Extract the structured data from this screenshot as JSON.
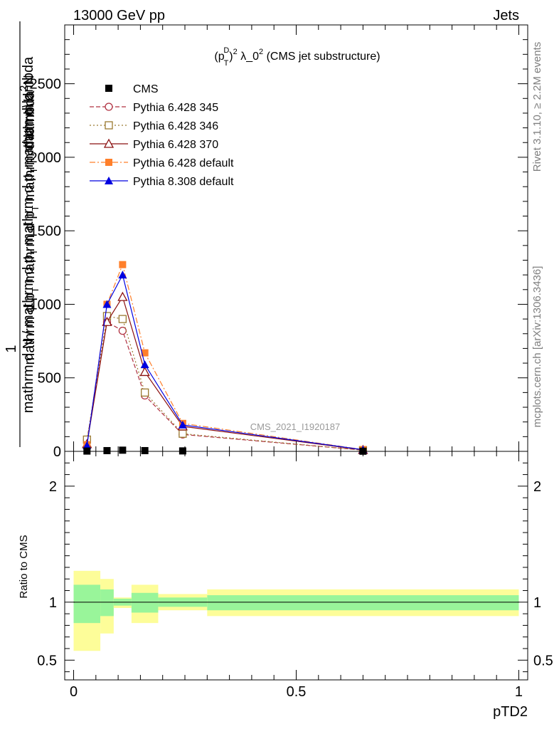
{
  "header": {
    "left": "13000 GeV pp",
    "right": "Jets"
  },
  "side_labels": {
    "rivet": "Rivet 3.1.10, ≥ 2.2M events",
    "mcplots": "mcplots.cern.ch [arXiv:1306.3436]"
  },
  "watermark": "CMS_2021_I1920187",
  "chart_data": [
    {
      "type": "line",
      "title_parts": {
        "pre": "(p",
        "sub": "T",
        "sup1": "D",
        "post1": ")",
        "sup2": "2",
        "post2": " λ_0",
        "sup3": "2",
        "post3": " (CMS jet substructure)"
      },
      "ylabel_numerator": "1",
      "ylabel_denominator": "mathrm d N / mathrm d p_T mathrm d p_T mathrm d\\lambda",
      "ylabel_parts": {
        "num": "mathrm d",
        "num2": "N",
        "den_a": "mathrm d N / mathrm d p",
        "den_sub": "T",
        "den_b": " mathrm d p",
        "den_sub2": "T",
        "den_c": "mathrm d\\lambda"
      },
      "xlim": [
        -0.02,
        1.02
      ],
      "ylim": [
        0,
        2900
      ],
      "yticks": [
        0,
        500,
        1000,
        1500,
        2000,
        2500
      ],
      "ytick_labels": [
        "0",
        "500",
        "1000",
        "1500",
        "2000",
        "2500"
      ],
      "x": [
        0.03,
        0.075,
        0.11,
        0.16,
        0.245,
        0.65
      ],
      "series": [
        {
          "name": "CMS",
          "values": [
            2,
            5,
            8,
            5,
            3,
            1
          ],
          "color": "#000000",
          "marker": "square-filled",
          "dash": "none"
        },
        {
          "name": "Pythia 6.428 345",
          "values": [
            75,
            880,
            820,
            380,
            115,
            8
          ],
          "color": "#b03040",
          "marker": "circle-open",
          "dash": "6,3"
        },
        {
          "name": "Pythia 6.428 346",
          "values": [
            80,
            920,
            900,
            400,
            120,
            8
          ],
          "color": "#9a7a30",
          "marker": "square-open",
          "dash": "2,3"
        },
        {
          "name": "Pythia 6.428 370",
          "values": [
            50,
            880,
            1050,
            540,
            170,
            10
          ],
          "color": "#8b1010",
          "marker": "triangle-open",
          "dash": "none"
        },
        {
          "name": "Pythia 6.428 default",
          "values": [
            45,
            1000,
            1270,
            670,
            190,
            12
          ],
          "color": "#ff7f2a",
          "marker": "square-filled",
          "dash": "8,3,2,3"
        },
        {
          "name": "Pythia 8.308 default",
          "values": [
            40,
            1000,
            1200,
            590,
            180,
            11
          ],
          "color": "#0000e0",
          "marker": "triangle-filled",
          "dash": "none"
        }
      ]
    },
    {
      "type": "area",
      "ylabel": "Ratio to CMS",
      "xlabel": "pTD2",
      "xlim": [
        -0.02,
        1.02
      ],
      "ylim": [
        0.33,
        2.3
      ],
      "xticks": [
        0,
        0.5,
        1
      ],
      "xtick_labels": [
        "0",
        "0.5",
        "1"
      ],
      "yticks": [
        0.5,
        1,
        2
      ],
      "ytick_labels": [
        "0.5",
        "1",
        "2"
      ],
      "reference_line": 1,
      "bins": [
        {
          "x": [
            0.0,
            0.06
          ],
          "inner": [
            0.82,
            1.15
          ],
          "outer": [
            0.58,
            1.27
          ]
        },
        {
          "x": [
            0.06,
            0.09
          ],
          "inner": [
            0.88,
            1.11
          ],
          "outer": [
            0.73,
            1.2
          ]
        },
        {
          "x": [
            0.09,
            0.13
          ],
          "inner": [
            0.97,
            1.03
          ],
          "outer": [
            0.95,
            1.04
          ]
        },
        {
          "x": [
            0.13,
            0.19
          ],
          "inner": [
            0.91,
            1.08
          ],
          "outer": [
            0.82,
            1.15
          ]
        },
        {
          "x": [
            0.19,
            0.3
          ],
          "inner": [
            0.96,
            1.04
          ],
          "outer": [
            0.93,
            1.07
          ]
        },
        {
          "x": [
            0.3,
            1.0
          ],
          "inner": [
            0.93,
            1.06
          ],
          "outer": [
            0.88,
            1.11
          ]
        }
      ],
      "colors": {
        "inner": "#99f59a",
        "outer": "#fdfd99"
      }
    }
  ]
}
